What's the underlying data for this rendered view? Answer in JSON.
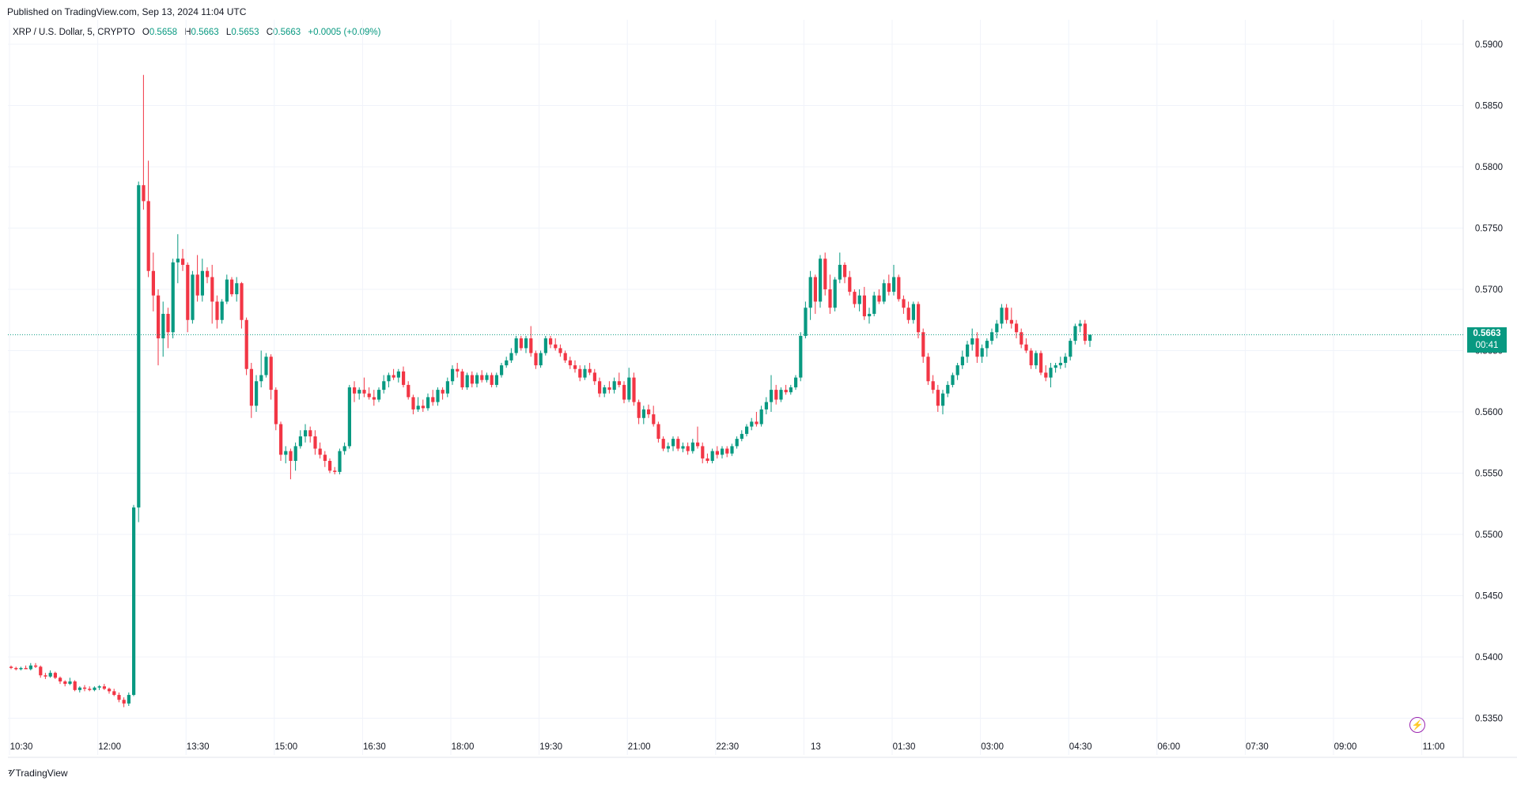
{
  "header": {
    "published": "Published on TradingView.com, Sep 13, 2024 11:04 UTC"
  },
  "legend": {
    "symbol": "XRP / U.S. Dollar, 5, CRYPTO",
    "o_label": "O",
    "o_value": "0.5658",
    "h_label": "H",
    "h_value": "0.5663",
    "l_label": "L",
    "l_value": "0.5653",
    "c_label": "C",
    "c_value": "0.5663",
    "change": "+0.0005 (+0.09%)"
  },
  "price_tag": {
    "price": "0.5663",
    "countdown": "00:41"
  },
  "footer": {
    "brand": "TradingView"
  },
  "colors": {
    "up": "#089981",
    "down": "#f23645",
    "grid": "#f0f3fa",
    "axis_text": "#131722"
  },
  "icons": {
    "flash": "lightning-icon",
    "logo": "tradingview-logo-icon"
  },
  "chart_data": {
    "type": "candlestick",
    "current_price": 0.5663,
    "ylim": [
      0.532,
      0.592
    ],
    "y_ticks": [
      0.59,
      0.585,
      0.58,
      0.575,
      0.57,
      0.565,
      0.56,
      0.555,
      0.55,
      0.545,
      0.54,
      0.535
    ],
    "y_tick_labels": [
      "0.5900",
      "0.5850",
      "0.5800",
      "0.5750",
      "0.5700",
      "0.5650",
      "0.5600",
      "0.5550",
      "0.5500",
      "0.5450",
      "0.5400",
      "0.5350"
    ],
    "x_tick_labels": [
      "10:30",
      "12:00",
      "13:30",
      "15:00",
      "16:30",
      "18:00",
      "19:30",
      "21:00",
      "22:30",
      "13",
      "01:30",
      "03:00",
      "04:30",
      "06:00",
      "07:30",
      "09:00",
      "11:00"
    ],
    "x_tick_bar_index": [
      0,
      18,
      36,
      54,
      72,
      90,
      108,
      126,
      144,
      162,
      180,
      198,
      216,
      234,
      252,
      270,
      288
    ],
    "candles": [
      [
        0.5392,
        0.5393,
        0.539,
        0.5391
      ],
      [
        0.5391,
        0.5392,
        0.5389,
        0.539
      ],
      [
        0.539,
        0.5392,
        0.5389,
        0.5391
      ],
      [
        0.5391,
        0.5393,
        0.539,
        0.539
      ],
      [
        0.539,
        0.5395,
        0.5389,
        0.5393
      ],
      [
        0.5393,
        0.5395,
        0.5391,
        0.5392
      ],
      [
        0.5392,
        0.5393,
        0.5383,
        0.5385
      ],
      [
        0.5385,
        0.5387,
        0.5382,
        0.5384
      ],
      [
        0.5384,
        0.5389,
        0.5383,
        0.5387
      ],
      [
        0.5387,
        0.5388,
        0.5382,
        0.5383
      ],
      [
        0.5383,
        0.5384,
        0.5378,
        0.538
      ],
      [
        0.538,
        0.5381,
        0.5376,
        0.5378
      ],
      [
        0.5378,
        0.5383,
        0.5377,
        0.538
      ],
      [
        0.538,
        0.5381,
        0.5372,
        0.5373
      ],
      [
        0.5373,
        0.5376,
        0.5371,
        0.5375
      ],
      [
        0.5375,
        0.5377,
        0.5372,
        0.5374
      ],
      [
        0.5374,
        0.5376,
        0.5372,
        0.5373
      ],
      [
        0.5373,
        0.5376,
        0.5372,
        0.5375
      ],
      [
        0.5375,
        0.5377,
        0.5373,
        0.5376
      ],
      [
        0.5376,
        0.5378,
        0.5373,
        0.5374
      ],
      [
        0.5374,
        0.5375,
        0.537,
        0.5372
      ],
      [
        0.5372,
        0.5374,
        0.5368,
        0.5369
      ],
      [
        0.5369,
        0.5371,
        0.5363,
        0.5365
      ],
      [
        0.5365,
        0.5367,
        0.5359,
        0.5362
      ],
      [
        0.5362,
        0.5371,
        0.536,
        0.5369
      ],
      [
        0.5369,
        0.5524,
        0.5368,
        0.5522
      ],
      [
        0.5522,
        0.5788,
        0.551,
        0.5785
      ],
      [
        0.5785,
        0.5875,
        0.5765,
        0.5772
      ],
      [
        0.5772,
        0.5805,
        0.571,
        0.5715
      ],
      [
        0.5715,
        0.573,
        0.5682,
        0.5695
      ],
      [
        0.5695,
        0.57,
        0.5638,
        0.566
      ],
      [
        0.566,
        0.569,
        0.5645,
        0.568
      ],
      [
        0.568,
        0.5685,
        0.5652,
        0.5665
      ],
      [
        0.5665,
        0.5725,
        0.566,
        0.5722
      ],
      [
        0.5722,
        0.5745,
        0.5705,
        0.5725
      ],
      [
        0.5725,
        0.5733,
        0.5715,
        0.572
      ],
      [
        0.572,
        0.5722,
        0.5665,
        0.5675
      ],
      [
        0.5675,
        0.5715,
        0.5672,
        0.5712
      ],
      [
        0.5712,
        0.5728,
        0.569,
        0.5695
      ],
      [
        0.5695,
        0.5725,
        0.569,
        0.5715
      ],
      [
        0.5715,
        0.5718,
        0.5705,
        0.571
      ],
      [
        0.571,
        0.572,
        0.5672,
        0.569
      ],
      [
        0.569,
        0.5695,
        0.5668,
        0.5675
      ],
      [
        0.5675,
        0.5692,
        0.5672,
        0.569
      ],
      [
        0.569,
        0.5712,
        0.5688,
        0.5708
      ],
      [
        0.5708,
        0.571,
        0.5694,
        0.5696
      ],
      [
        0.5696,
        0.571,
        0.569,
        0.5705
      ],
      [
        0.5705,
        0.5706,
        0.5668,
        0.5675
      ],
      [
        0.5675,
        0.5677,
        0.563,
        0.5635
      ],
      [
        0.5635,
        0.564,
        0.5595,
        0.5605
      ],
      [
        0.5605,
        0.563,
        0.56,
        0.5625
      ],
      [
        0.5625,
        0.565,
        0.562,
        0.563
      ],
      [
        0.563,
        0.5648,
        0.5628,
        0.5645
      ],
      [
        0.5645,
        0.5647,
        0.561,
        0.5618
      ],
      [
        0.5618,
        0.562,
        0.5585,
        0.559
      ],
      [
        0.559,
        0.5592,
        0.556,
        0.5565
      ],
      [
        0.5565,
        0.5572,
        0.5558,
        0.5568
      ],
      [
        0.5568,
        0.557,
        0.5545,
        0.556
      ],
      [
        0.556,
        0.5575,
        0.5552,
        0.5572
      ],
      [
        0.5572,
        0.5585,
        0.557,
        0.558
      ],
      [
        0.558,
        0.559,
        0.5575,
        0.5585
      ],
      [
        0.5585,
        0.5588,
        0.5575,
        0.558
      ],
      [
        0.558,
        0.5585,
        0.5565,
        0.557
      ],
      [
        0.557,
        0.5575,
        0.5562,
        0.5565
      ],
      [
        0.5565,
        0.5568,
        0.5555,
        0.556
      ],
      [
        0.556,
        0.5562,
        0.555,
        0.5552
      ],
      [
        0.5552,
        0.5555,
        0.5549,
        0.5551
      ],
      [
        0.5551,
        0.557,
        0.5549,
        0.5568
      ],
      [
        0.5568,
        0.5575,
        0.5565,
        0.5572
      ],
      [
        0.5572,
        0.5622,
        0.557,
        0.562
      ],
      [
        0.562,
        0.5625,
        0.5608,
        0.5615
      ],
      [
        0.5615,
        0.562,
        0.561,
        0.5618
      ],
      [
        0.5618,
        0.5628,
        0.5612,
        0.5615
      ],
      [
        0.5615,
        0.562,
        0.561,
        0.5612
      ],
      [
        0.5612,
        0.5618,
        0.5605,
        0.561
      ],
      [
        0.561,
        0.562,
        0.5608,
        0.5618
      ],
      [
        0.5618,
        0.563,
        0.5615,
        0.5625
      ],
      [
        0.5625,
        0.5632,
        0.562,
        0.563
      ],
      [
        0.563,
        0.5635,
        0.5626,
        0.5628
      ],
      [
        0.5628,
        0.5635,
        0.5624,
        0.5633
      ],
      [
        0.5633,
        0.5637,
        0.562,
        0.5622
      ],
      [
        0.5622,
        0.5625,
        0.561,
        0.5612
      ],
      [
        0.5612,
        0.5614,
        0.5598,
        0.5602
      ],
      [
        0.5602,
        0.5612,
        0.56,
        0.5605
      ],
      [
        0.5605,
        0.561,
        0.56,
        0.5603
      ],
      [
        0.5603,
        0.5615,
        0.5601,
        0.5612
      ],
      [
        0.5612,
        0.5618,
        0.5605,
        0.5608
      ],
      [
        0.5608,
        0.562,
        0.5605,
        0.5618
      ],
      [
        0.5618,
        0.562,
        0.561,
        0.5615
      ],
      [
        0.5615,
        0.5628,
        0.5612,
        0.5625
      ],
      [
        0.5625,
        0.5638,
        0.5622,
        0.5635
      ],
      [
        0.5635,
        0.564,
        0.5628,
        0.5633
      ],
      [
        0.5633,
        0.5635,
        0.5618,
        0.562
      ],
      [
        0.562,
        0.5632,
        0.5618,
        0.563
      ],
      [
        0.563,
        0.5633,
        0.562,
        0.5623
      ],
      [
        0.5623,
        0.5632,
        0.562,
        0.563
      ],
      [
        0.563,
        0.5634,
        0.5624,
        0.5626
      ],
      [
        0.5626,
        0.5632,
        0.5624,
        0.563
      ],
      [
        0.563,
        0.5632,
        0.562,
        0.5622
      ],
      [
        0.5622,
        0.5632,
        0.562,
        0.563
      ],
      [
        0.563,
        0.564,
        0.5628,
        0.5638
      ],
      [
        0.5638,
        0.5645,
        0.5636,
        0.5642
      ],
      [
        0.5642,
        0.5652,
        0.564,
        0.5648
      ],
      [
        0.5648,
        0.5662,
        0.5646,
        0.566
      ],
      [
        0.566,
        0.5662,
        0.565,
        0.5652
      ],
      [
        0.5652,
        0.5662,
        0.5648,
        0.566
      ],
      [
        0.566,
        0.567,
        0.5645,
        0.5648
      ],
      [
        0.5648,
        0.565,
        0.5635,
        0.5638
      ],
      [
        0.5638,
        0.565,
        0.5636,
        0.5648
      ],
      [
        0.5648,
        0.5662,
        0.5646,
        0.566
      ],
      [
        0.566,
        0.5662,
        0.5652,
        0.5655
      ],
      [
        0.5655,
        0.566,
        0.565,
        0.5652
      ],
      [
        0.5652,
        0.5655,
        0.5645,
        0.5648
      ],
      [
        0.5648,
        0.565,
        0.564,
        0.5642
      ],
      [
        0.5642,
        0.5645,
        0.5635,
        0.5638
      ],
      [
        0.5638,
        0.5642,
        0.5632,
        0.5635
      ],
      [
        0.5635,
        0.5638,
        0.5625,
        0.5628
      ],
      [
        0.5628,
        0.5638,
        0.5626,
        0.5635
      ],
      [
        0.5635,
        0.564,
        0.563,
        0.5632
      ],
      [
        0.5632,
        0.5635,
        0.5622,
        0.5625
      ],
      [
        0.5625,
        0.5628,
        0.5612,
        0.5615
      ],
      [
        0.5615,
        0.5622,
        0.5612,
        0.562
      ],
      [
        0.562,
        0.5625,
        0.5615,
        0.5618
      ],
      [
        0.5618,
        0.5628,
        0.5615,
        0.5625
      ],
      [
        0.5625,
        0.5632,
        0.562,
        0.5622
      ],
      [
        0.5622,
        0.5625,
        0.5607,
        0.561
      ],
      [
        0.561,
        0.5636,
        0.5608,
        0.5628
      ],
      [
        0.5628,
        0.5632,
        0.5605,
        0.5608
      ],
      [
        0.5608,
        0.561,
        0.559,
        0.5595
      ],
      [
        0.5595,
        0.5605,
        0.559,
        0.5602
      ],
      [
        0.5602,
        0.5606,
        0.5595,
        0.5598
      ],
      [
        0.5598,
        0.5605,
        0.5588,
        0.559
      ],
      [
        0.559,
        0.5592,
        0.5575,
        0.5578
      ],
      [
        0.5578,
        0.558,
        0.5568,
        0.557
      ],
      [
        0.557,
        0.5575,
        0.5567,
        0.5572
      ],
      [
        0.5572,
        0.558,
        0.5568,
        0.5578
      ],
      [
        0.5578,
        0.558,
        0.5568,
        0.557
      ],
      [
        0.557,
        0.5575,
        0.5567,
        0.5572
      ],
      [
        0.5572,
        0.5575,
        0.5565,
        0.5568
      ],
      [
        0.5568,
        0.5578,
        0.5566,
        0.5575
      ],
      [
        0.5575,
        0.5588,
        0.557,
        0.5572
      ],
      [
        0.5572,
        0.5575,
        0.5558,
        0.5562
      ],
      [
        0.5562,
        0.5566,
        0.5558,
        0.556
      ],
      [
        0.556,
        0.557,
        0.5558,
        0.5568
      ],
      [
        0.5568,
        0.5572,
        0.5562,
        0.5565
      ],
      [
        0.5565,
        0.5572,
        0.5562,
        0.557
      ],
      [
        0.557,
        0.5572,
        0.5563,
        0.5566
      ],
      [
        0.5566,
        0.5574,
        0.5564,
        0.5572
      ],
      [
        0.5572,
        0.558,
        0.557,
        0.5578
      ],
      [
        0.5578,
        0.5585,
        0.5576,
        0.5582
      ],
      [
        0.5582,
        0.559,
        0.558,
        0.5588
      ],
      [
        0.5588,
        0.5595,
        0.5585,
        0.5592
      ],
      [
        0.5592,
        0.56,
        0.5588,
        0.559
      ],
      [
        0.559,
        0.5605,
        0.5588,
        0.5602
      ],
      [
        0.5602,
        0.5612,
        0.5598,
        0.5608
      ],
      [
        0.5608,
        0.563,
        0.56,
        0.5618
      ],
      [
        0.5618,
        0.5622,
        0.5606,
        0.561
      ],
      [
        0.561,
        0.562,
        0.5608,
        0.5618
      ],
      [
        0.5618,
        0.5622,
        0.5614,
        0.5616
      ],
      [
        0.5616,
        0.5622,
        0.5614,
        0.562
      ],
      [
        0.562,
        0.563,
        0.5618,
        0.5628
      ],
      [
        0.5628,
        0.5665,
        0.5625,
        0.5662
      ],
      [
        0.5662,
        0.569,
        0.566,
        0.5685
      ],
      [
        0.5685,
        0.5715,
        0.5675,
        0.571
      ],
      [
        0.571,
        0.5712,
        0.568,
        0.569
      ],
      [
        0.569,
        0.5728,
        0.5685,
        0.5725
      ],
      [
        0.5725,
        0.573,
        0.5695,
        0.57
      ],
      [
        0.57,
        0.5712,
        0.568,
        0.5685
      ],
      [
        0.5685,
        0.571,
        0.5682,
        0.5708
      ],
      [
        0.5708,
        0.573,
        0.5705,
        0.572
      ],
      [
        0.572,
        0.5722,
        0.5705,
        0.571
      ],
      [
        0.571,
        0.5715,
        0.5695,
        0.5698
      ],
      [
        0.5698,
        0.57,
        0.5685,
        0.5688
      ],
      [
        0.5688,
        0.57,
        0.5682,
        0.5695
      ],
      [
        0.5695,
        0.5702,
        0.5675,
        0.5678
      ],
      [
        0.5678,
        0.5685,
        0.5672,
        0.568
      ],
      [
        0.568,
        0.5698,
        0.5678,
        0.5695
      ],
      [
        0.5695,
        0.57,
        0.5688,
        0.569
      ],
      [
        0.569,
        0.5708,
        0.5688,
        0.5705
      ],
      [
        0.5705,
        0.5712,
        0.5695,
        0.5698
      ],
      [
        0.5698,
        0.572,
        0.5695,
        0.571
      ],
      [
        0.571,
        0.5712,
        0.569,
        0.5692
      ],
      [
        0.5692,
        0.5695,
        0.568,
        0.5685
      ],
      [
        0.5685,
        0.569,
        0.5672,
        0.5675
      ],
      [
        0.5675,
        0.569,
        0.5672,
        0.5688
      ],
      [
        0.5688,
        0.569,
        0.566,
        0.5665
      ],
      [
        0.5665,
        0.5668,
        0.564,
        0.5645
      ],
      [
        0.5645,
        0.5648,
        0.5622,
        0.5625
      ],
      [
        0.5625,
        0.563,
        0.5615,
        0.5618
      ],
      [
        0.5618,
        0.5622,
        0.56,
        0.5605
      ],
      [
        0.5605,
        0.5618,
        0.5598,
        0.5615
      ],
      [
        0.5615,
        0.5625,
        0.5612,
        0.5622
      ],
      [
        0.5622,
        0.5632,
        0.562,
        0.563
      ],
      [
        0.563,
        0.564,
        0.5626,
        0.5638
      ],
      [
        0.5638,
        0.565,
        0.5635,
        0.5645
      ],
      [
        0.5645,
        0.5658,
        0.564,
        0.5655
      ],
      [
        0.5655,
        0.5668,
        0.565,
        0.566
      ],
      [
        0.566,
        0.5665,
        0.564,
        0.5645
      ],
      [
        0.5645,
        0.5655,
        0.564,
        0.5652
      ],
      [
        0.5652,
        0.566,
        0.5645,
        0.5658
      ],
      [
        0.5658,
        0.5668,
        0.5655,
        0.5665
      ],
      [
        0.5665,
        0.5675,
        0.566,
        0.5672
      ],
      [
        0.5672,
        0.5688,
        0.5668,
        0.5685
      ],
      [
        0.5685,
        0.5688,
        0.5672,
        0.5675
      ],
      [
        0.5675,
        0.5685,
        0.5668,
        0.5672
      ],
      [
        0.5672,
        0.5675,
        0.566,
        0.5665
      ],
      [
        0.5665,
        0.5668,
        0.5652,
        0.5655
      ],
      [
        0.5655,
        0.566,
        0.5648,
        0.565
      ],
      [
        0.565,
        0.5652,
        0.5635,
        0.5638
      ],
      [
        0.5638,
        0.565,
        0.5635,
        0.5648
      ],
      [
        0.5648,
        0.565,
        0.563,
        0.5632
      ],
      [
        0.5632,
        0.5638,
        0.5625,
        0.5628
      ],
      [
        0.5628,
        0.564,
        0.562,
        0.5636
      ],
      [
        0.5636,
        0.564,
        0.5632,
        0.5638
      ],
      [
        0.5638,
        0.5645,
        0.5635,
        0.564
      ],
      [
        0.564,
        0.5648,
        0.5636,
        0.5645
      ],
      [
        0.5645,
        0.566,
        0.5642,
        0.5658
      ],
      [
        0.5658,
        0.5672,
        0.5655,
        0.567
      ],
      [
        0.567,
        0.5675,
        0.5665,
        0.5672
      ],
      [
        0.5672,
        0.5675,
        0.5655,
        0.5658
      ],
      [
        0.5658,
        0.5663,
        0.5653,
        0.5663
      ]
    ]
  }
}
